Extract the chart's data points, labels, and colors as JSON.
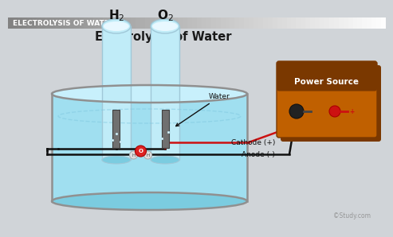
{
  "bg_color": "#d0d4d8",
  "header_text": "ELECTROLYSIS OF WATER",
  "header_text_color": "#ffffff",
  "header_bg": "#888888",
  "title": "Electrolysis of Water",
  "water_fill": "#a0dff0",
  "water_deep": "#7bcce0",
  "water_light": "#c8f0fc",
  "tank_edge": "#909090",
  "tube_fill": "#c0ecf8",
  "tube_edge": "#a0c8d8",
  "electrode_fill": "#707070",
  "electrode_edge": "#404040",
  "power_box_face": "#c06000",
  "power_box_shadow": "#7a3800",
  "power_box_text": "Power Source",
  "wire_red": "#cc1111",
  "wire_black": "#111111",
  "label_water": "Water",
  "label_cathode": "Cathode (+)",
  "label_anode": "Anode (-)",
  "label_h2": "H$_2$",
  "label_o2": "O$_2$",
  "study_text": "©Study.com"
}
